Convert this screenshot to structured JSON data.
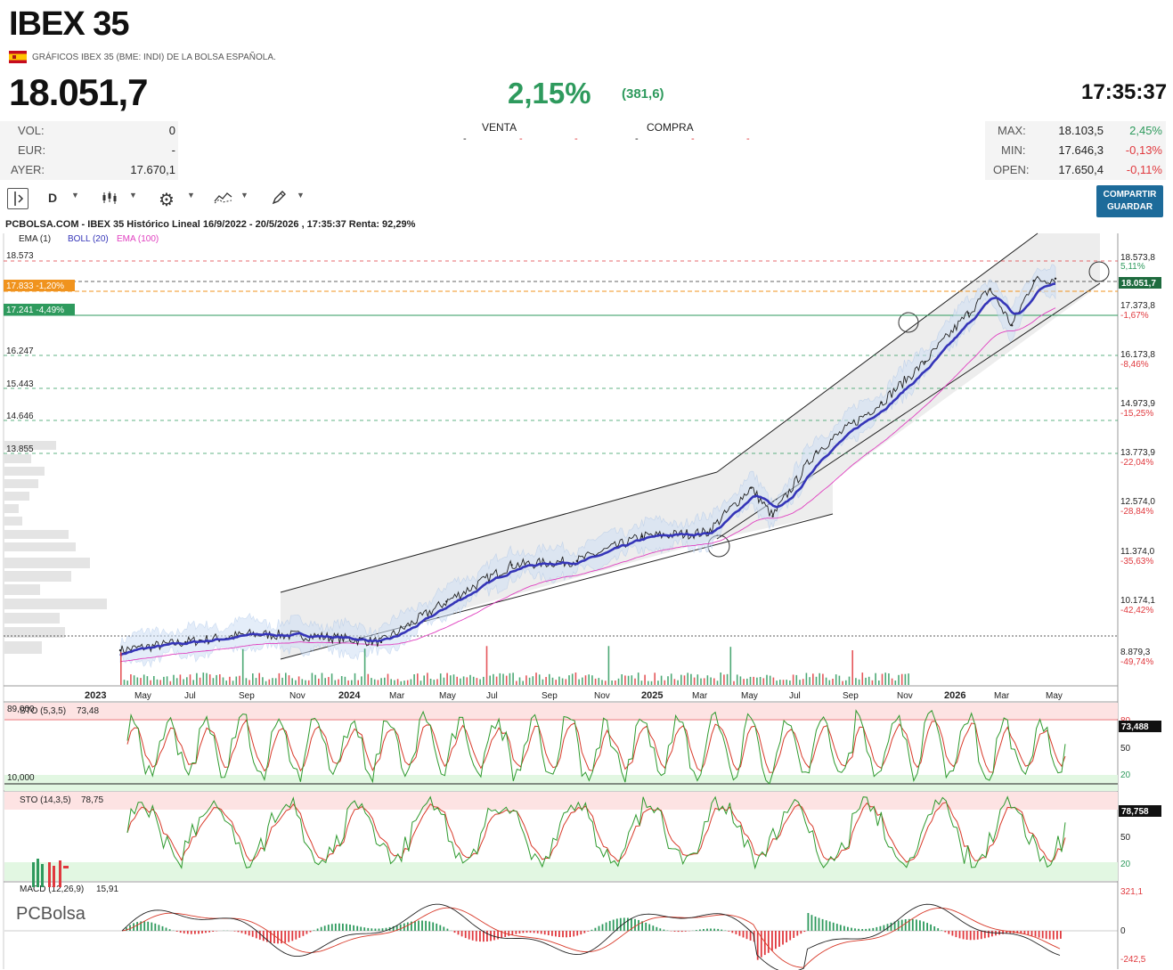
{
  "header": {
    "title": "IBEX 35",
    "subtitle": "GRÁFICOS IBEX 35 (BME: INDI) DE LA BOLSA ESPAÑOLA.",
    "price": "18.051,7",
    "change_pct": "2,15%",
    "change_abs": "(381,6)",
    "time": "17:35:37"
  },
  "left_stats": [
    {
      "label": "VOL:",
      "value": "0"
    },
    {
      "label": "EUR:",
      "value": "-"
    },
    {
      "label": "AYER:",
      "value": "17.670,1"
    }
  ],
  "order_book": {
    "sell_label": "VENTA",
    "buy_label": "COMPRA",
    "dash": "-"
  },
  "right_stats": [
    {
      "label": "MAX:",
      "value": "18.103,5",
      "pct": "2,45%"
    },
    {
      "label": "MIN:",
      "value": "17.646,3",
      "pct": "-0,13%"
    },
    {
      "label": "OPEN:",
      "value": "17.650,4",
      "pct": "-0,11%"
    }
  ],
  "toolbar": {
    "period": "D",
    "share_button_line1": "COMPARTIR",
    "share_button_line2": "GUARDAR"
  },
  "colors": {
    "up": "#2e9a5d",
    "down": "#e0393e",
    "boll": "#3535b8",
    "ema100": "#e040c0",
    "orange": "#f0931e"
  },
  "chart_data": [
    {
      "type": "line",
      "title": "PCBOLSA.COM - IBEX 35 Histórico Lineal 16/9/2022 - 20/5/2026 , 17:35:37 Renta: 92,29%",
      "legend": [
        "EMA (1)",
        "BOLL (20)",
        "EMA (100)"
      ],
      "x": [
        "2022-10",
        "2023-01",
        "2023-04",
        "2023-07",
        "2023-10",
        "2024-01",
        "2024-04",
        "2024-07",
        "2024-10",
        "2025-01",
        "2025-03",
        "2025-04",
        "2025-06",
        "2025-09",
        "2025-11",
        "2026-01",
        "2026-02",
        "2026-03",
        "2026-04",
        "2026-05"
      ],
      "y": [
        8900,
        9100,
        9300,
        9250,
        9100,
        10100,
        11000,
        11100,
        11700,
        11800,
        12900,
        12200,
        13800,
        15000,
        16000,
        17200,
        17800,
        16900,
        18000,
        18051.7
      ],
      "x_tick_labels": [
        "2023",
        "May",
        "Jul",
        "Sep",
        "Nov",
        "2024",
        "Mar",
        "May",
        "Jul",
        "Sep",
        "Nov",
        "2025",
        "Mar",
        "May",
        "Jul",
        "Sep",
        "Nov",
        "2026",
        "Mar",
        "May"
      ],
      "left_levels": [
        "18.573",
        "17.833 -1,20%",
        "17.241 -4,49%",
        "16.247",
        "15.443",
        "14.646",
        "13.855"
      ],
      "right_ticks": [
        "18.573,8",
        "5,11%",
        "17.373,8",
        "-1,67%",
        "16.173,8",
        "-8,46%",
        "14.973,9",
        "-15,25%",
        "13.773,9",
        "-22,04%",
        "12.574,0",
        "-28,84%",
        "11.374,0",
        "-35,63%",
        "10.174,1",
        "-42,42%",
        "8.879,3",
        "-49,74%"
      ],
      "last_value_label": "18.051,7",
      "ylim": [
        8400,
        19100
      ]
    },
    {
      "type": "line",
      "title": "STO (5,3,5)",
      "value_label": "73,48",
      "last_value_label": "73,488",
      "scale_top": "89,000",
      "scale_bottom": "10,000",
      "right_ticks": [
        "80",
        "50",
        "20"
      ]
    },
    {
      "type": "line",
      "title": "STO (14,3,5)",
      "value_label": "78,75",
      "last_value_label": "78,758",
      "right_ticks": [
        "50",
        "20"
      ]
    },
    {
      "type": "bar",
      "title": "MACD (12,26,9)",
      "value_label": "15,91",
      "right_ticks": [
        "321,1",
        "0",
        "-242,5"
      ]
    }
  ],
  "watermark": "PCBolsa"
}
